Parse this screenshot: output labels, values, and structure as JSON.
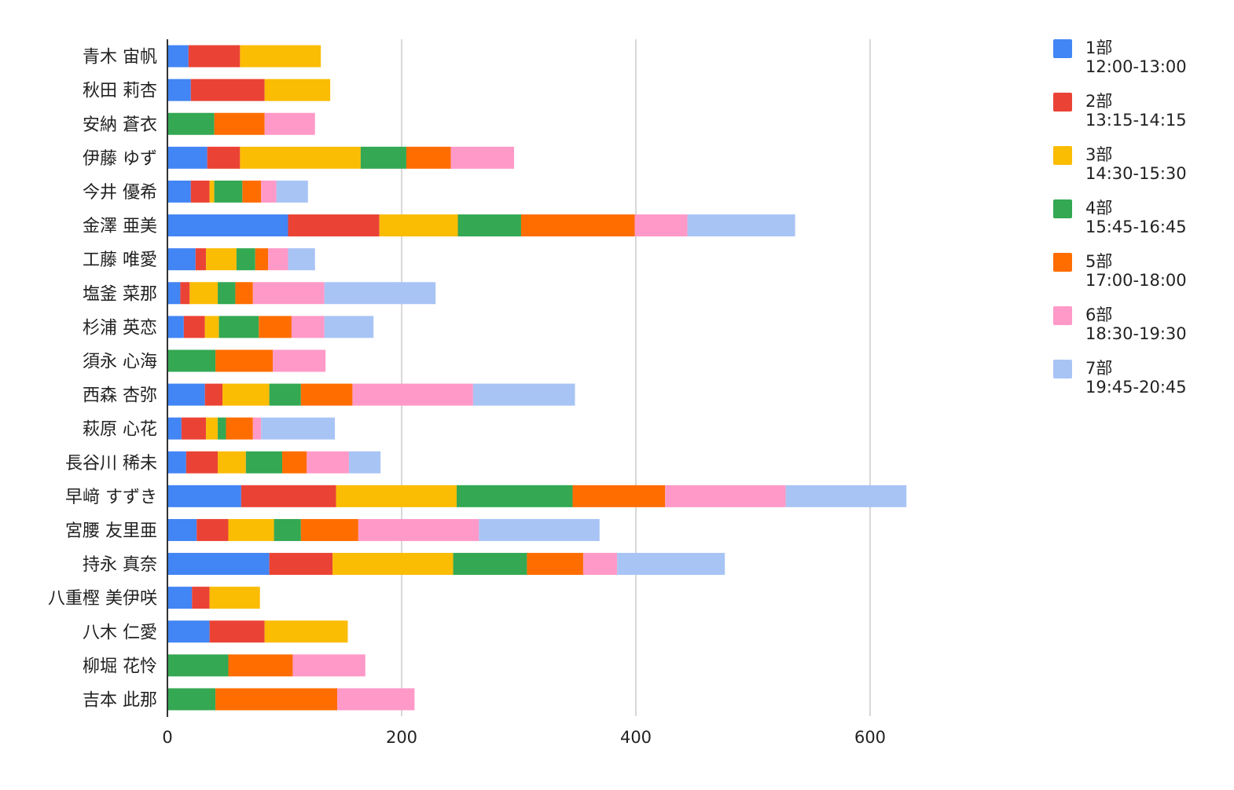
{
  "chart_data": {
    "type": "bar",
    "orientation": "horizontal",
    "stacked": true,
    "title": "",
    "xlabel": "",
    "ylabel": "",
    "xlim": [
      0,
      700
    ],
    "xticks": [
      0,
      200,
      400,
      600
    ],
    "grid": true,
    "legend_position": "right",
    "categories": [
      "青木 宙帆",
      "秋田 莉杏",
      "安納 蒼衣",
      "伊藤 ゆず",
      "今井 優希",
      "金澤 亜美",
      "工藤 唯愛",
      "塩釜 菜那",
      "杉浦 英恋",
      "須永 心海",
      "西森 杏弥",
      "萩原 心花",
      "長谷川 稀未",
      "早﨑 すずき",
      "宮腰 友里亜",
      "持永 真奈",
      "八重樫 美伊咲",
      "八木 仁愛",
      "柳堀 花怜",
      "吉本 此那"
    ],
    "series": [
      {
        "name": "1部",
        "time": "12:00-13:00",
        "color": "#4285f4",
        "values": [
          18,
          20,
          0,
          34,
          20,
          103,
          24,
          11,
          14,
          0,
          32,
          12,
          16,
          63,
          25,
          87,
          21,
          36,
          0,
          0
        ]
      },
      {
        "name": "2部",
        "time": "13:15-14:15",
        "color": "#ea4335",
        "values": [
          44,
          63,
          0,
          28,
          16,
          78,
          9,
          8,
          18,
          0,
          15,
          21,
          27,
          81,
          27,
          54,
          15,
          47,
          0,
          0
        ]
      },
      {
        "name": "3部",
        "time": "14:30-15:30",
        "color": "#fbbc04",
        "values": [
          69,
          56,
          0,
          103,
          4,
          67,
          26,
          24,
          12,
          0,
          40,
          10,
          24,
          103,
          39,
          103,
          43,
          71,
          0,
          0
        ]
      },
      {
        "name": "4部",
        "time": "15:45-16:45",
        "color": "#34a853",
        "values": [
          0,
          0,
          40,
          39,
          24,
          54,
          16,
          15,
          34,
          41,
          27,
          7,
          31,
          99,
          23,
          63,
          0,
          0,
          52,
          41
        ]
      },
      {
        "name": "5部",
        "time": "17:00-18:00",
        "color": "#ff6d01",
        "values": [
          0,
          0,
          43,
          38,
          16,
          97,
          11,
          15,
          28,
          49,
          44,
          23,
          21,
          79,
          49,
          48,
          0,
          0,
          55,
          104
        ]
      },
      {
        "name": "6部",
        "time": "18:30-19:30",
        "color": "#ff99c8",
        "values": [
          0,
          0,
          43,
          54,
          13,
          45,
          17,
          61,
          28,
          45,
          103,
          7,
          36,
          103,
          103,
          29,
          0,
          0,
          62,
          66
        ]
      },
      {
        "name": "7部",
        "time": "19:45-20:45",
        "color": "#a8c4f5",
        "values": [
          0,
          0,
          0,
          0,
          27,
          92,
          23,
          95,
          42,
          0,
          87,
          63,
          27,
          103,
          103,
          92,
          0,
          0,
          0,
          0
        ]
      }
    ]
  }
}
